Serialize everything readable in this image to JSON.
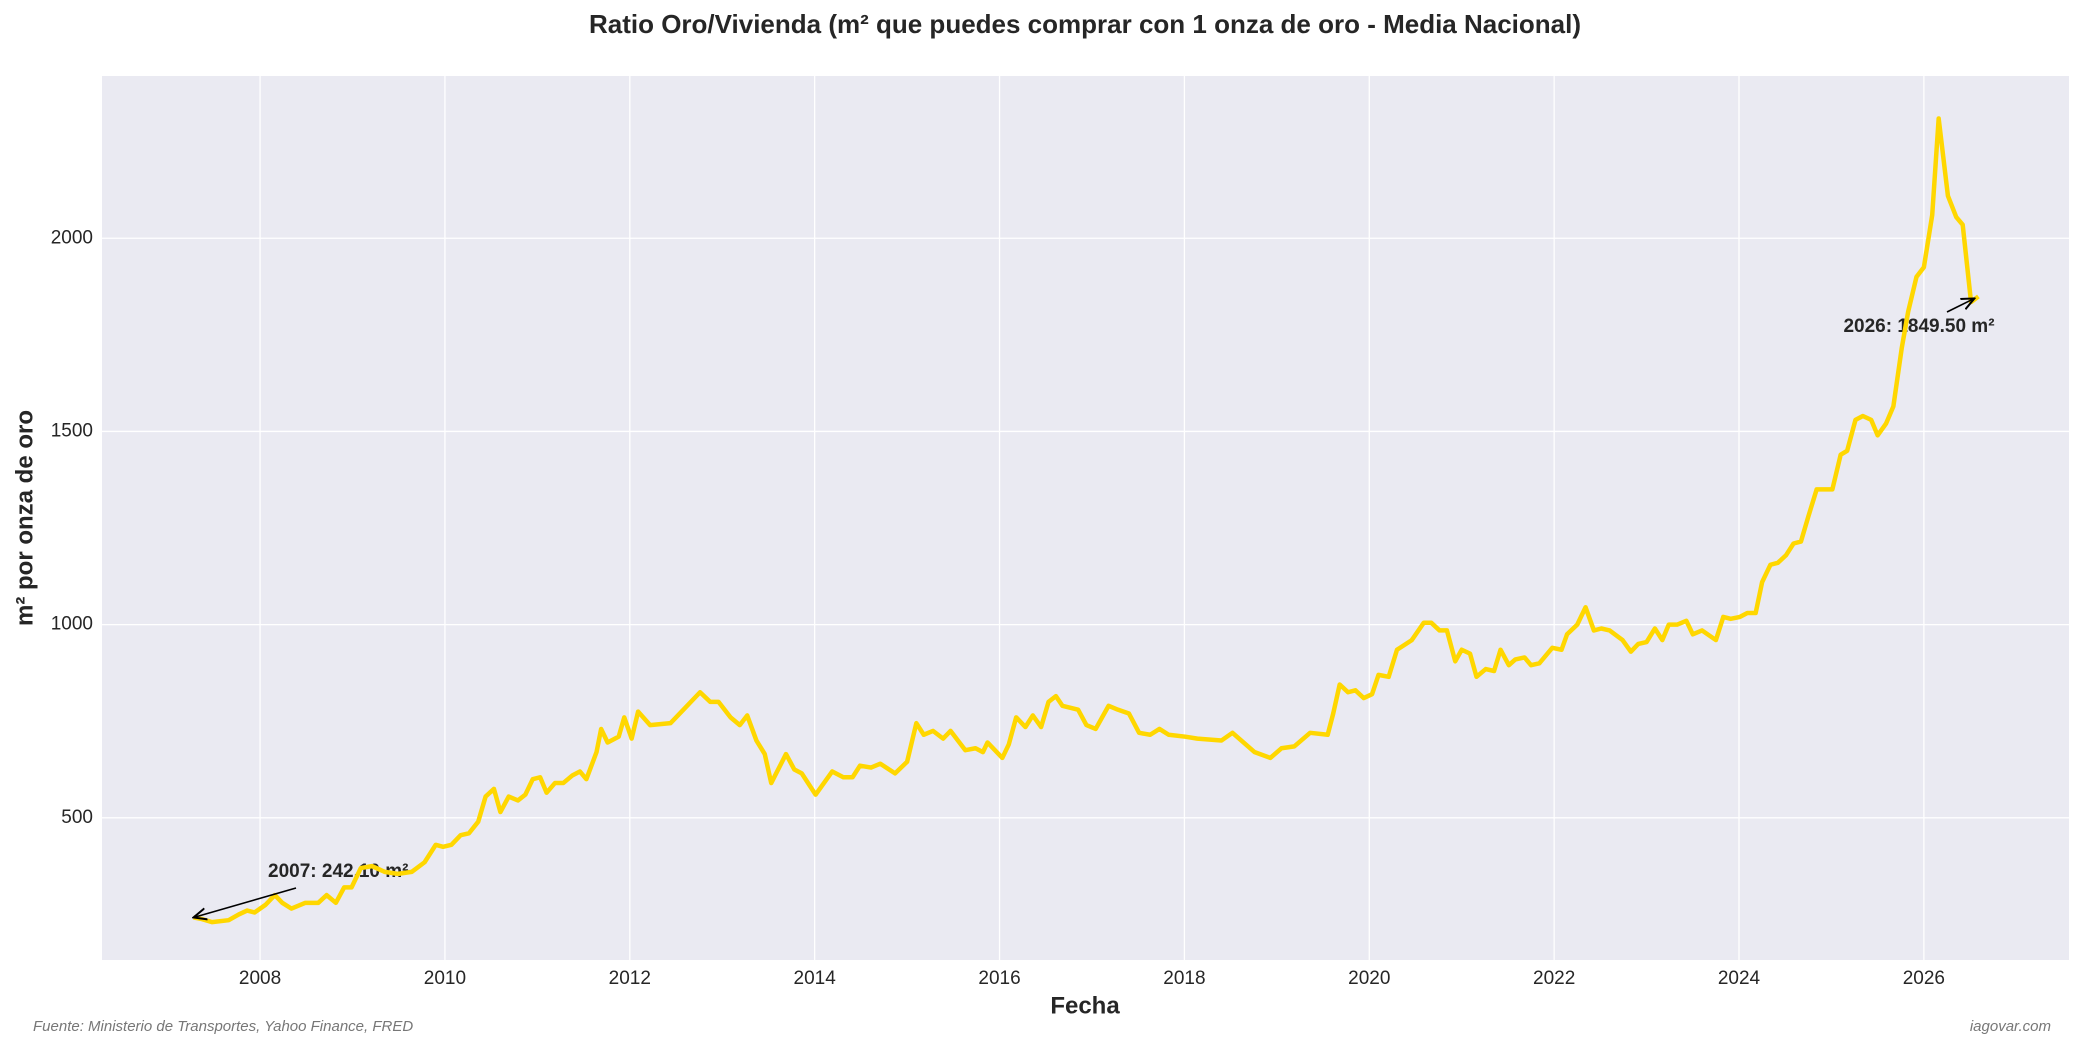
{
  "chart_data": {
    "type": "line",
    "title": "Ratio Oro/Vivienda (m² que puedes comprar con 1 onza de oro - Media Nacional)",
    "x_label": "Fecha",
    "y_label": "m² por onza de oro",
    "footer_left": "Fuente: Ministerio de Transportes, Yahoo Finance, FRED",
    "footer_right": "iagovar.com",
    "annotations": [
      "2007: 242.10 m²",
      "2026: 1849.50 m²"
    ],
    "color": "#FFD700",
    "grid": true,
    "xlim": [
      2006.29,
      2027.57
    ],
    "ylim": [
      132,
      2420
    ],
    "xticks": [
      2008,
      2010,
      2012,
      2014,
      2016,
      2018,
      2020,
      2022,
      2024,
      2026
    ],
    "yticks": [
      500,
      1000,
      1500,
      2000
    ],
    "x": [
      2007.28,
      2007.37,
      2007.48,
      2007.66,
      2007.77,
      2007.86,
      2007.94,
      2008.06,
      2008.16,
      2008.24,
      2008.34,
      2008.49,
      2008.63,
      2008.72,
      2008.82,
      2008.91,
      2008.99,
      2009.09,
      2009.21,
      2009.35,
      2009.49,
      2009.64,
      2009.78,
      2009.9,
      2009.98,
      2010.07,
      2010.17,
      2010.26,
      2010.36,
      2010.44,
      2010.53,
      2010.6,
      2010.69,
      2010.79,
      2010.87,
      2010.95,
      2011.03,
      2011.1,
      2011.19,
      2011.28,
      2011.38,
      2011.46,
      2011.53,
      2011.64,
      2011.69,
      2011.76,
      2011.88,
      2011.94,
      2012.02,
      2012.09,
      2012.22,
      2012.44,
      2012.58,
      2012.76,
      2012.87,
      2012.96,
      2013.09,
      2013.19,
      2013.27,
      2013.37,
      2013.46,
      2013.53,
      2013.69,
      2013.78,
      2013.86,
      2014.01,
      2014.19,
      2014.31,
      2014.41,
      2014.49,
      2014.61,
      2014.71,
      2014.87,
      2015.0,
      2015.1,
      2015.18,
      2015.28,
      2015.39,
      2015.47,
      2015.63,
      2015.74,
      2015.82,
      2015.87,
      2016.03,
      2016.1,
      2016.18,
      2016.28,
      2016.36,
      2016.45,
      2016.53,
      2016.61,
      2016.68,
      2016.85,
      2016.94,
      2017.04,
      2017.18,
      2017.28,
      2017.4,
      2017.51,
      2017.63,
      2017.73,
      2017.83,
      2018.01,
      2018.14,
      2018.4,
      2018.52,
      2018.76,
      2018.93,
      2019.05,
      2019.19,
      2019.36,
      2019.55,
      2019.61,
      2019.68,
      2019.77,
      2019.85,
      2019.94,
      2020.03,
      2020.1,
      2020.21,
      2020.3,
      2020.46,
      2020.59,
      2020.67,
      2020.76,
      2020.84,
      2020.93,
      2021.0,
      2021.09,
      2021.16,
      2021.26,
      2021.35,
      2021.42,
      2021.51,
      2021.58,
      2021.68,
      2021.75,
      2021.84,
      2021.98,
      2022.08,
      2022.14,
      2022.25,
      2022.34,
      2022.43,
      2022.51,
      2022.6,
      2022.74,
      2022.83,
      2022.91,
      2023.0,
      2023.09,
      2023.17,
      2023.24,
      2023.33,
      2023.43,
      2023.5,
      2023.6,
      2023.75,
      2023.83,
      2023.91,
      2024.01,
      2024.09,
      2024.18,
      2024.25,
      2024.34,
      2024.42,
      2024.51,
      2024.59,
      2024.67,
      2024.75,
      2024.84,
      2024.93,
      2025.01,
      2025.1,
      2025.17,
      2025.26,
      2025.34,
      2025.43,
      2025.5,
      2025.59,
      2025.67,
      2025.76,
      2025.83,
      2025.92,
      2026.0,
      2026.09,
      2026.16,
      2026.26,
      2026.35,
      2026.42,
      2026.51,
      2026.59
    ],
    "values": [
      242.1,
      238,
      230,
      235,
      250,
      260,
      255,
      275,
      300,
      280,
      265,
      280,
      280,
      300,
      280,
      320,
      320,
      370,
      375,
      360,
      355,
      360,
      385,
      430,
      425,
      430,
      455,
      460,
      490,
      555,
      575,
      515,
      555,
      545,
      560,
      600,
      605,
      565,
      590,
      590,
      610,
      620,
      600,
      670,
      730,
      695,
      710,
      760,
      705,
      775,
      740,
      745,
      780,
      825,
      800,
      800,
      760,
      740,
      765,
      700,
      665,
      590,
      665,
      625,
      615,
      560,
      620,
      605,
      605,
      635,
      630,
      640,
      615,
      645,
      745,
      715,
      725,
      705,
      725,
      675,
      680,
      670,
      695,
      655,
      690,
      760,
      735,
      765,
      735,
      800,
      815,
      790,
      780,
      740,
      730,
      790,
      780,
      770,
      720,
      715,
      730,
      715,
      710,
      705,
      700,
      720,
      670,
      655,
      680,
      685,
      720,
      715,
      770,
      845,
      825,
      830,
      810,
      820,
      870,
      865,
      935,
      960,
      1005,
      1005,
      985,
      985,
      905,
      935,
      925,
      865,
      885,
      880,
      935,
      895,
      910,
      915,
      895,
      900,
      940,
      935,
      975,
      1000,
      1045,
      985,
      990,
      985,
      960,
      930,
      950,
      955,
      990,
      960,
      1000,
      1000,
      1010,
      975,
      985,
      960,
      1020,
      1015,
      1020,
      1030,
      1030,
      1110,
      1155,
      1160,
      1180,
      1210,
      1215,
      1280,
      1350,
      1350,
      1350,
      1440,
      1450,
      1530,
      1540,
      1530,
      1490,
      1520,
      1565,
      1715,
      1810,
      1900,
      1925,
      2060,
      2310,
      2110,
      2055,
      2035,
      1835,
      1849.5
    ]
  }
}
